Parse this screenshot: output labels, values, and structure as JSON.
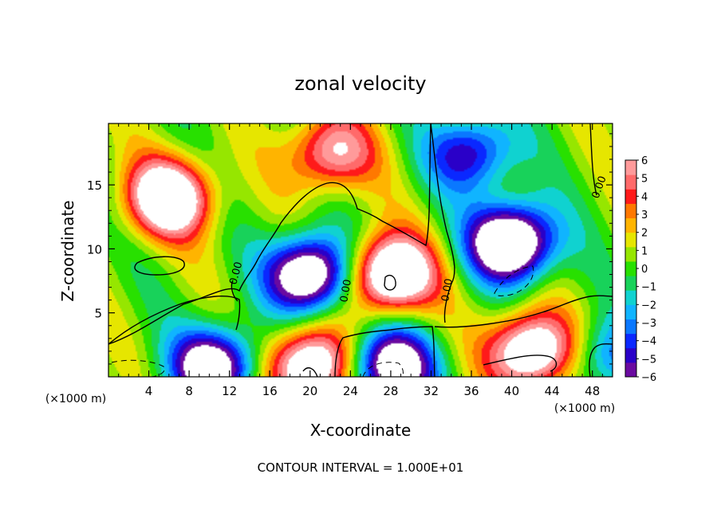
{
  "chart_data": {
    "type": "heatmap",
    "title": "zonal velocity",
    "xlabel": "X-coordinate",
    "ylabel": "Z-coordinate",
    "x_unit": "(×1000 m)",
    "z_unit": "(×1000 m)",
    "footer": "CONTOUR INTERVAL = 1.000E+01",
    "xlim": [
      0,
      50
    ],
    "ylim": [
      0,
      19.8
    ],
    "xticks": [
      4,
      8,
      12,
      16,
      20,
      24,
      28,
      32,
      36,
      40,
      44,
      48
    ],
    "yticks": [
      5,
      10,
      15
    ],
    "contour_label": "0.00",
    "colorbar": {
      "min": -6,
      "max": 6,
      "ticks": [
        "6",
        "5",
        "4",
        "3",
        "2",
        "1",
        "0",
        "−1",
        "−2",
        "−3",
        "−4",
        "−5",
        "−6"
      ],
      "out_of_range_color": "#ffffff",
      "colors": [
        "#6a0aa0",
        "#2a00c8",
        "#0a28ff",
        "#0a78ff",
        "#10b4ff",
        "#10d2d0",
        "#18d25a",
        "#28e000",
        "#96e600",
        "#e6e600",
        "#ffb400",
        "#ff7800",
        "#ff1a1a",
        "#ff6a6a",
        "#ff9a9a"
      ]
    },
    "features": [
      {
        "kind": "max",
        "x": 6,
        "z": 14,
        "value": 9
      },
      {
        "kind": "min",
        "x": 10.5,
        "z": 0.8,
        "value": -9
      },
      {
        "kind": "min",
        "x": 20,
        "z": 8,
        "value": -10
      },
      {
        "kind": "max",
        "x": 28,
        "z": 8,
        "value": 10
      },
      {
        "kind": "max",
        "x": 20,
        "z": 0.8,
        "value": 9
      },
      {
        "kind": "min",
        "x": 28,
        "z": 0.8,
        "value": -9
      },
      {
        "kind": "min",
        "x": 40,
        "z": 10.5,
        "value": -11
      },
      {
        "kind": "max",
        "x": 42,
        "z": 2,
        "value": 9
      },
      {
        "kind": "max",
        "x": 22,
        "z": 17.5,
        "value": 6
      },
      {
        "kind": "min",
        "x": 36,
        "z": 17.5,
        "value": -6
      },
      {
        "kind": "min",
        "x": 49.5,
        "z": 1.5,
        "value": -4
      }
    ]
  }
}
